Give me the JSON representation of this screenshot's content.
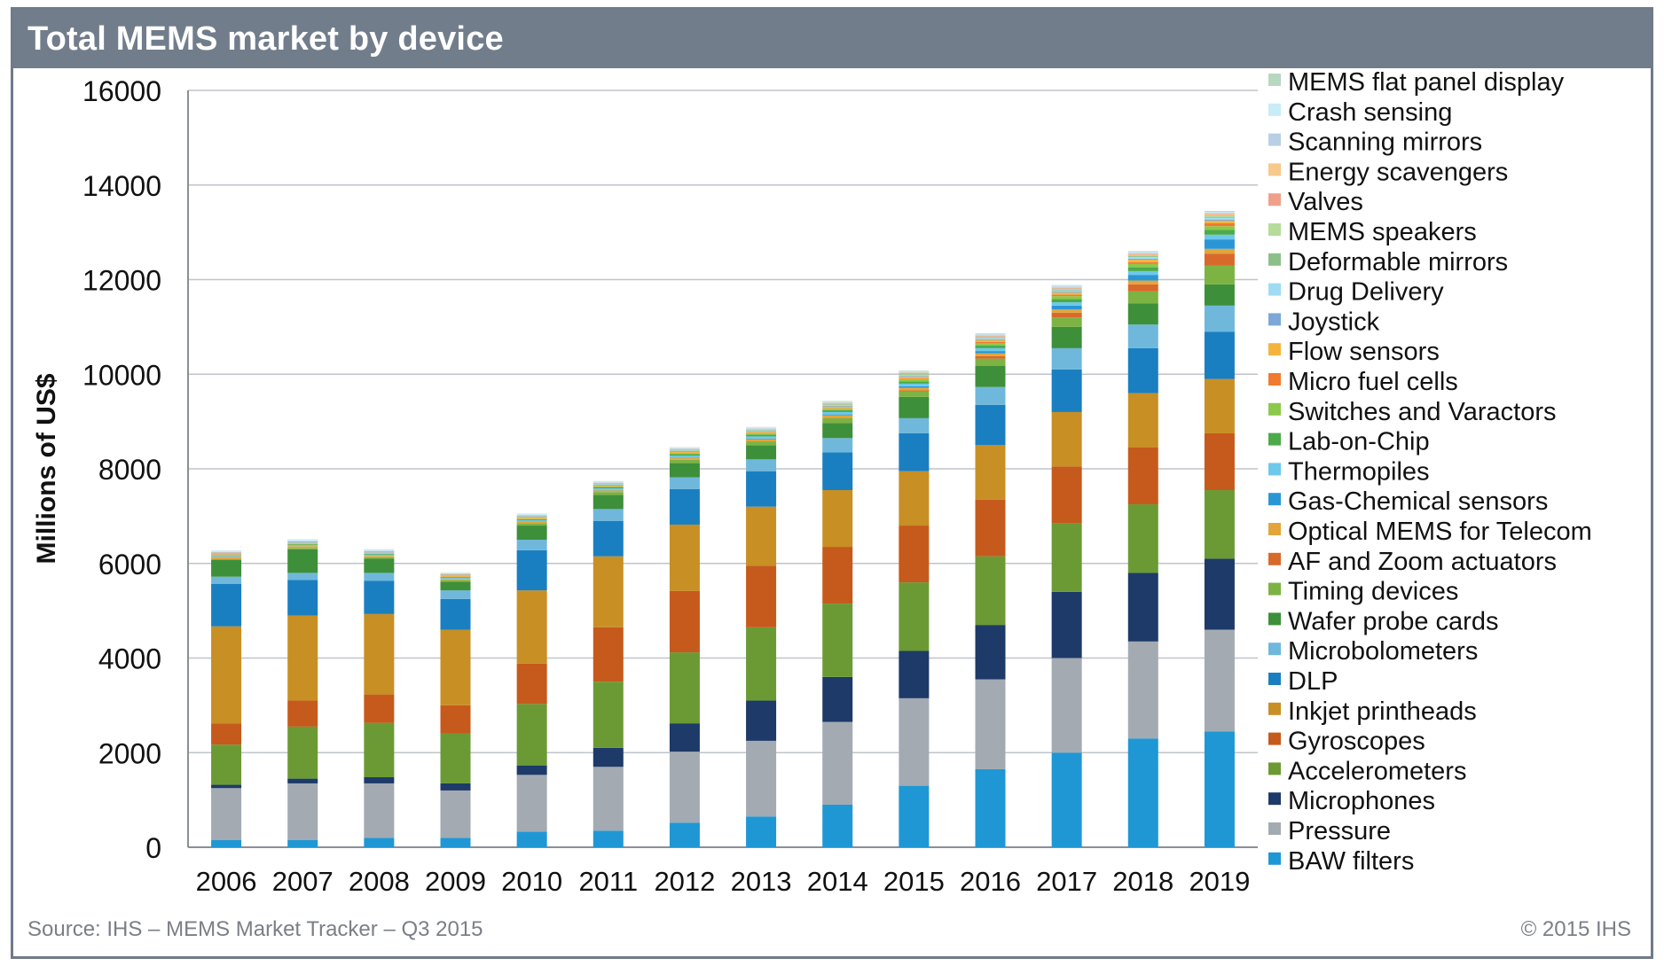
{
  "header": {
    "title": "Total MEMS market by device"
  },
  "footer": {
    "source": "Source: IHS – MEMS Market Tracker – Q3 2015",
    "copyright": "© 2015 IHS"
  },
  "chart_data": {
    "type": "bar",
    "stacked": true,
    "title": "Total MEMS market by device",
    "xlabel": "",
    "ylabel": "Millions of US$",
    "ylim": [
      0,
      16000
    ],
    "yticks": [
      0,
      2000,
      4000,
      6000,
      8000,
      10000,
      12000,
      14000,
      16000
    ],
    "grid": true,
    "legend_position": "right",
    "categories": [
      "2006",
      "2007",
      "2008",
      "2009",
      "2010",
      "2011",
      "2012",
      "2013",
      "2014",
      "2015",
      "2016",
      "2017",
      "2018",
      "2019"
    ],
    "series": [
      {
        "name": "BAW filters",
        "color": "#1f97d4",
        "values": [
          150,
          150,
          200,
          200,
          330,
          350,
          520,
          650,
          900,
          1300,
          1650,
          2000,
          2300,
          2450
        ]
      },
      {
        "name": "Pressure",
        "color": "#a3aab2",
        "values": [
          1100,
          1200,
          1150,
          1000,
          1200,
          1350,
          1500,
          1600,
          1750,
          1850,
          1900,
          2000,
          2050,
          2150
        ]
      },
      {
        "name": "Microphones",
        "color": "#1d3a68",
        "values": [
          70,
          100,
          130,
          150,
          200,
          400,
          600,
          850,
          950,
          1000,
          1150,
          1400,
          1450,
          1500
        ]
      },
      {
        "name": "Accelerometers",
        "color": "#6b9a34",
        "values": [
          850,
          1100,
          1150,
          1050,
          1300,
          1400,
          1500,
          1550,
          1550,
          1450,
          1450,
          1450,
          1450,
          1450
        ]
      },
      {
        "name": "Gyroscopes",
        "color": "#c55a1c",
        "values": [
          450,
          550,
          600,
          600,
          850,
          1150,
          1300,
          1300,
          1200,
          1200,
          1200,
          1200,
          1200,
          1200
        ]
      },
      {
        "name": "Inkjet printheads",
        "color": "#c88f24",
        "values": [
          2050,
          1800,
          1700,
          1600,
          1550,
          1500,
          1400,
          1250,
          1200,
          1150,
          1150,
          1150,
          1150,
          1150
        ]
      },
      {
        "name": "DLP",
        "color": "#1a7fc0",
        "values": [
          900,
          750,
          700,
          650,
          850,
          750,
          750,
          750,
          800,
          800,
          850,
          900,
          950,
          1000
        ]
      },
      {
        "name": "Microbolometers",
        "color": "#6fb8dc",
        "values": [
          150,
          150,
          170,
          180,
          220,
          250,
          250,
          250,
          300,
          320,
          380,
          450,
          500,
          550
        ]
      },
      {
        "name": "Wafer probe cards",
        "color": "#3e8f3a",
        "values": [
          350,
          500,
          300,
          180,
          300,
          300,
          300,
          300,
          320,
          450,
          450,
          450,
          450,
          450
        ]
      },
      {
        "name": "Timing devices",
        "color": "#7cb342",
        "values": [
          20,
          25,
          30,
          35,
          50,
          60,
          70,
          80,
          100,
          120,
          150,
          200,
          250,
          400
        ]
      },
      {
        "name": "AF and Zoom actuators",
        "color": "#d9692a",
        "values": [
          0,
          0,
          0,
          0,
          0,
          0,
          0,
          0,
          10,
          20,
          50,
          100,
          150,
          250
        ]
      },
      {
        "name": "Optical MEMS for Telecom",
        "color": "#e3a53a",
        "values": [
          50,
          40,
          30,
          25,
          30,
          35,
          40,
          45,
          50,
          55,
          60,
          70,
          80,
          100
        ]
      },
      {
        "name": "Gas-Chemical sensors",
        "color": "#2b96d6",
        "values": [
          0,
          0,
          0,
          0,
          5,
          8,
          10,
          15,
          20,
          30,
          50,
          80,
          120,
          200
        ]
      },
      {
        "name": "Thermopiles",
        "color": "#6dc8ec",
        "values": [
          20,
          25,
          25,
          25,
          30,
          35,
          40,
          45,
          50,
          55,
          60,
          70,
          80,
          100
        ]
      },
      {
        "name": "Lab-on-Chip",
        "color": "#4caa4a",
        "values": [
          10,
          15,
          15,
          15,
          20,
          25,
          30,
          35,
          40,
          50,
          60,
          70,
          80,
          100
        ]
      },
      {
        "name": "Switches and Varactors",
        "color": "#8cc84b",
        "values": [
          5,
          5,
          5,
          5,
          10,
          15,
          20,
          25,
          30,
          40,
          50,
          60,
          70,
          80
        ]
      },
      {
        "name": "Micro fuel cells",
        "color": "#f07a30",
        "values": [
          0,
          0,
          0,
          0,
          0,
          0,
          0,
          5,
          10,
          15,
          20,
          30,
          40,
          60
        ]
      },
      {
        "name": "Flow sensors",
        "color": "#f4b43c",
        "values": [
          20,
          20,
          20,
          20,
          25,
          25,
          30,
          30,
          35,
          40,
          40,
          45,
          50,
          55
        ]
      },
      {
        "name": "Joystick",
        "color": "#7da7d9",
        "values": [
          10,
          10,
          10,
          10,
          12,
          12,
          15,
          15,
          15,
          18,
          20,
          20,
          22,
          25
        ]
      },
      {
        "name": "Drug Delivery",
        "color": "#9fdcf4",
        "values": [
          5,
          5,
          5,
          5,
          8,
          10,
          12,
          15,
          18,
          20,
          25,
          30,
          35,
          40
        ]
      },
      {
        "name": "Deformable mirrors",
        "color": "#8dbf8a",
        "values": [
          10,
          10,
          10,
          10,
          12,
          12,
          12,
          12,
          15,
          15,
          15,
          15,
          18,
          18
        ]
      },
      {
        "name": "MEMS speakers",
        "color": "#b5dc9a",
        "values": [
          0,
          0,
          0,
          0,
          0,
          0,
          5,
          5,
          10,
          10,
          15,
          20,
          25,
          30
        ]
      },
      {
        "name": "Valves",
        "color": "#f0a08a",
        "values": [
          10,
          10,
          10,
          10,
          10,
          12,
          12,
          12,
          12,
          15,
          15,
          15,
          15,
          15
        ]
      },
      {
        "name": "Energy scavengers",
        "color": "#f7c98a",
        "values": [
          0,
          0,
          0,
          0,
          5,
          5,
          5,
          8,
          10,
          12,
          15,
          18,
          20,
          25
        ]
      },
      {
        "name": "Scanning mirrors",
        "color": "#b9cfe6",
        "values": [
          10,
          10,
          10,
          10,
          10,
          12,
          12,
          12,
          15,
          15,
          15,
          15,
          18,
          18
        ]
      },
      {
        "name": "Crash sensing",
        "color": "#c8ecf8",
        "values": [
          30,
          30,
          25,
          20,
          20,
          20,
          20,
          20,
          18,
          18,
          15,
          15,
          15,
          15
        ]
      },
      {
        "name": "MEMS flat panel display",
        "color": "#b6d8c0",
        "values": [
          5,
          5,
          5,
          5,
          5,
          5,
          5,
          5,
          8,
          10,
          10,
          12,
          15,
          20
        ]
      }
    ]
  }
}
